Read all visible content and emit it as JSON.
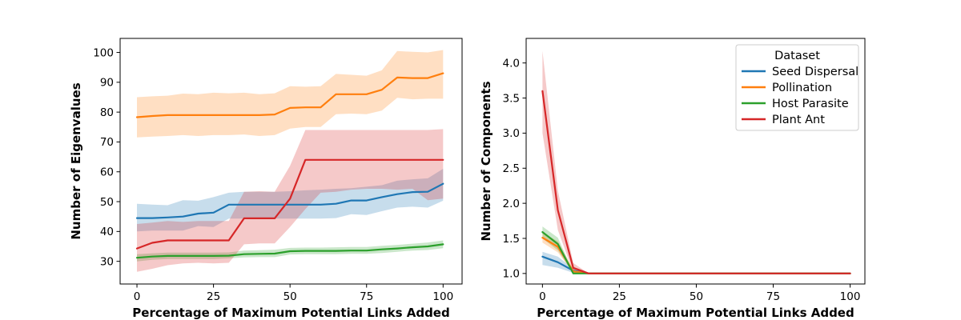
{
  "figure": {
    "background": "#ffffff"
  },
  "chart_data": [
    {
      "type": "line",
      "name": "left",
      "title": "",
      "xlabel": "Percentage of Maximum Potential Links Added",
      "ylabel": "Number of Eigenvalues",
      "xlim": [
        -5.5,
        106.2
      ],
      "ylim": [
        22.4,
        104.7
      ],
      "xticks": [
        0,
        25,
        50,
        75,
        100
      ],
      "xtick_labels": [
        "0",
        "25",
        "50",
        "75",
        "100"
      ],
      "yticks": [
        30,
        40,
        50,
        60,
        70,
        80,
        90,
        100
      ],
      "ytick_labels": [
        "30",
        "40",
        "50",
        "60",
        "70",
        "80",
        "90",
        "100"
      ],
      "grid": false,
      "legend": null,
      "x": [
        0,
        5,
        10,
        15,
        20,
        25,
        30,
        35,
        40,
        45,
        50,
        55,
        60,
        65,
        70,
        75,
        80,
        85,
        90,
        95,
        100
      ],
      "series": [
        {
          "name": "Seed Dispersal",
          "color": "#1f77b4",
          "values": [
            44.5,
            44.5,
            44.7,
            45.0,
            46.0,
            46.3,
            49.0,
            49.0,
            49.0,
            49.0,
            49.0,
            49.0,
            49.0,
            49.3,
            50.4,
            50.4,
            51.5,
            52.5,
            53.2,
            53.3,
            56.0
          ],
          "lower": [
            40.0,
            40.3,
            40.3,
            40.3,
            41.8,
            41.5,
            44.3,
            44.3,
            44.3,
            44.3,
            44.3,
            44.3,
            44.3,
            44.5,
            45.8,
            45.5,
            46.8,
            48.0,
            48.3,
            48.0,
            50.3
          ],
          "upper": [
            49.3,
            49.0,
            48.8,
            50.5,
            50.3,
            51.5,
            53.0,
            53.3,
            53.3,
            53.3,
            53.5,
            53.8,
            54.0,
            54.3,
            54.5,
            55.0,
            55.5,
            57.0,
            57.5,
            57.8,
            61.0
          ]
        },
        {
          "name": "Pollination",
          "color": "#ff7f0e",
          "values": [
            78.3,
            78.7,
            79.0,
            79.0,
            79.0,
            79.0,
            79.0,
            79.0,
            79.0,
            79.2,
            81.4,
            81.6,
            81.6,
            86.0,
            86.0,
            86.0,
            87.5,
            91.6,
            91.4,
            91.4,
            93.0
          ],
          "lower": [
            71.5,
            71.8,
            72.0,
            72.3,
            72.0,
            72.3,
            72.3,
            72.5,
            72.0,
            72.3,
            74.5,
            75.0,
            75.0,
            79.3,
            79.5,
            79.3,
            80.5,
            84.8,
            84.3,
            84.5,
            84.5
          ],
          "upper": [
            85.0,
            85.3,
            85.5,
            86.2,
            86.0,
            86.5,
            86.3,
            86.5,
            86.0,
            86.3,
            88.7,
            88.5,
            88.7,
            92.8,
            92.5,
            92.2,
            94.0,
            100.5,
            100.2,
            100.0,
            100.8
          ]
        },
        {
          "name": "Host Parasite",
          "color": "#2ca02c",
          "values": [
            31.2,
            31.6,
            31.8,
            31.8,
            31.8,
            31.8,
            31.9,
            32.4,
            32.5,
            32.6,
            33.4,
            33.5,
            33.5,
            33.5,
            33.6,
            33.6,
            34.0,
            34.3,
            34.7,
            35.0,
            35.7
          ],
          "lower": [
            30.0,
            30.5,
            30.8,
            30.8,
            30.8,
            30.8,
            31.0,
            31.3,
            31.4,
            31.4,
            32.3,
            32.4,
            32.4,
            32.4,
            32.5,
            32.5,
            32.8,
            33.2,
            33.6,
            33.8,
            34.4
          ],
          "upper": [
            32.4,
            32.7,
            32.9,
            32.9,
            32.9,
            32.9,
            33.0,
            33.6,
            33.7,
            33.9,
            34.5,
            34.6,
            34.6,
            34.7,
            34.8,
            34.8,
            35.2,
            35.5,
            35.9,
            36.3,
            37.0
          ]
        },
        {
          "name": "Plant Ant",
          "color": "#d62728",
          "values": [
            34.3,
            36.2,
            37.0,
            37.0,
            37.0,
            37.0,
            37.0,
            44.4,
            44.4,
            44.4,
            51.0,
            64.0,
            64.0,
            64.0,
            64.0,
            64.0,
            64.0,
            64.0,
            64.0,
            64.0,
            64.0
          ],
          "lower": [
            26.5,
            27.5,
            28.7,
            29.3,
            29.5,
            29.3,
            29.5,
            35.7,
            36.0,
            36.0,
            41.5,
            47.5,
            53.0,
            53.3,
            54.0,
            54.3,
            54.3,
            54.0,
            54.3,
            50.5,
            51.0
          ],
          "upper": [
            42.5,
            43.0,
            43.5,
            43.2,
            43.5,
            43.5,
            43.5,
            53.3,
            53.5,
            53.3,
            62.0,
            74.0,
            74.0,
            74.0,
            74.0,
            74.0,
            74.0,
            74.0,
            74.0,
            74.0,
            74.3
          ]
        }
      ]
    },
    {
      "type": "line",
      "name": "right",
      "title": "",
      "xlabel": "Percentage of Maximum Potential Links Added",
      "ylabel": "Number of Components",
      "xlim": [
        -5.3,
        104.8
      ],
      "ylim": [
        0.85,
        4.35
      ],
      "xticks": [
        0,
        25,
        50,
        75,
        100
      ],
      "xtick_labels": [
        "0",
        "25",
        "50",
        "75",
        "100"
      ],
      "yticks": [
        1.0,
        1.5,
        2.0,
        2.5,
        3.0,
        3.5,
        4.0
      ],
      "ytick_labels": [
        "1.0",
        "1.5",
        "2.0",
        "2.5",
        "3.0",
        "3.5",
        "4.0"
      ],
      "grid": false,
      "legend": {
        "title": "Dataset",
        "location": "upper right",
        "entries": [
          "Seed Dispersal",
          "Pollination",
          "Host Parasite",
          "Plant Ant"
        ]
      },
      "x": [
        0,
        5,
        10,
        15,
        20,
        25,
        30,
        35,
        40,
        45,
        50,
        55,
        60,
        65,
        70,
        75,
        80,
        85,
        90,
        95,
        100
      ],
      "series": [
        {
          "name": "Seed Dispersal",
          "color": "#1f77b4",
          "values": [
            1.24,
            1.16,
            1.04,
            1.0,
            1.0,
            1.0,
            1.0,
            1.0,
            1.0,
            1.0,
            1.0,
            1.0,
            1.0,
            1.0,
            1.0,
            1.0,
            1.0,
            1.0,
            1.0,
            1.0,
            1.0
          ],
          "lower": [
            1.12,
            1.08,
            1.01,
            1.0,
            1.0,
            1.0,
            1.0,
            1.0,
            1.0,
            1.0,
            1.0,
            1.0,
            1.0,
            1.0,
            1.0,
            1.0,
            1.0,
            1.0,
            1.0,
            1.0,
            1.0
          ],
          "upper": [
            1.31,
            1.24,
            1.07,
            1.0,
            1.0,
            1.0,
            1.0,
            1.0,
            1.0,
            1.0,
            1.0,
            1.0,
            1.0,
            1.0,
            1.0,
            1.0,
            1.0,
            1.0,
            1.0,
            1.0,
            1.0
          ]
        },
        {
          "name": "Pollination",
          "color": "#ff7f0e",
          "values": [
            1.51,
            1.38,
            1.03,
            1.0,
            1.0,
            1.0,
            1.0,
            1.0,
            1.0,
            1.0,
            1.0,
            1.0,
            1.0,
            1.0,
            1.0,
            1.0,
            1.0,
            1.0,
            1.0,
            1.0,
            1.0
          ],
          "lower": [
            1.44,
            1.3,
            1.01,
            1.0,
            1.0,
            1.0,
            1.0,
            1.0,
            1.0,
            1.0,
            1.0,
            1.0,
            1.0,
            1.0,
            1.0,
            1.0,
            1.0,
            1.0,
            1.0,
            1.0,
            1.0
          ],
          "upper": [
            1.58,
            1.46,
            1.06,
            1.0,
            1.0,
            1.0,
            1.0,
            1.0,
            1.0,
            1.0,
            1.0,
            1.0,
            1.0,
            1.0,
            1.0,
            1.0,
            1.0,
            1.0,
            1.0,
            1.0,
            1.0
          ]
        },
        {
          "name": "Host Parasite",
          "color": "#2ca02c",
          "values": [
            1.59,
            1.42,
            1.0,
            1.0,
            1.0,
            1.0,
            1.0,
            1.0,
            1.0,
            1.0,
            1.0,
            1.0,
            1.0,
            1.0,
            1.0,
            1.0,
            1.0,
            1.0,
            1.0,
            1.0,
            1.0
          ],
          "lower": [
            1.5,
            1.33,
            1.0,
            1.0,
            1.0,
            1.0,
            1.0,
            1.0,
            1.0,
            1.0,
            1.0,
            1.0,
            1.0,
            1.0,
            1.0,
            1.0,
            1.0,
            1.0,
            1.0,
            1.0,
            1.0
          ],
          "upper": [
            1.67,
            1.51,
            1.02,
            1.0,
            1.0,
            1.0,
            1.0,
            1.0,
            1.0,
            1.0,
            1.0,
            1.0,
            1.0,
            1.0,
            1.0,
            1.0,
            1.0,
            1.0,
            1.0,
            1.0,
            1.0
          ]
        },
        {
          "name": "Plant Ant",
          "color": "#d62728",
          "values": [
            3.6,
            1.9,
            1.08,
            1.0,
            1.0,
            1.0,
            1.0,
            1.0,
            1.0,
            1.0,
            1.0,
            1.0,
            1.0,
            1.0,
            1.0,
            1.0,
            1.0,
            1.0,
            1.0,
            1.0,
            1.0
          ],
          "lower": [
            3.0,
            1.62,
            1.02,
            1.0,
            1.0,
            1.0,
            1.0,
            1.0,
            1.0,
            1.0,
            1.0,
            1.0,
            1.0,
            1.0,
            1.0,
            1.0,
            1.0,
            1.0,
            1.0,
            1.0,
            1.0
          ],
          "upper": [
            4.17,
            2.18,
            1.15,
            1.0,
            1.0,
            1.0,
            1.0,
            1.0,
            1.0,
            1.0,
            1.0,
            1.0,
            1.0,
            1.0,
            1.0,
            1.0,
            1.0,
            1.0,
            1.0,
            1.0,
            1.0
          ]
        }
      ]
    }
  ],
  "style": {
    "line_color_seed_dispersal": "#1f77b4",
    "line_color_pollination": "#ff7f0e",
    "line_color_host_parasite": "#2ca02c",
    "line_color_plant_ant": "#d62728",
    "spine_color": "#000000",
    "text_color": "#000000",
    "legend_border_color": "#cccccc"
  }
}
